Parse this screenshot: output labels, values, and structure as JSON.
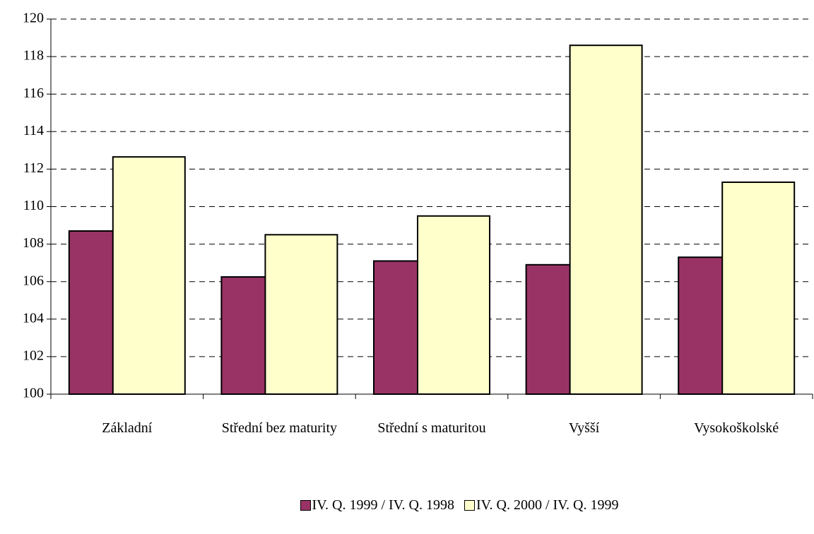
{
  "chart_data": {
    "type": "bar",
    "categories": [
      "Základní",
      "Střední bez maturity",
      "Střední s maturitou",
      "Vyšší",
      "Vysokoškolské"
    ],
    "series": [
      {
        "name": "IV. Q. 1999 / IV. Q. 1998",
        "color": "#993366",
        "values": [
          108.7,
          106.25,
          107.1,
          106.9,
          107.3
        ]
      },
      {
        "name": "IV. Q. 2000 / IV. Q. 1999",
        "color": "#ffffcc",
        "values": [
          112.65,
          108.5,
          109.5,
          118.6,
          111.3
        ]
      }
    ],
    "ylim": [
      100,
      120
    ],
    "yticks": [
      100,
      102,
      104,
      106,
      108,
      110,
      112,
      114,
      116,
      118,
      120
    ],
    "grid": true,
    "legend": "bottom"
  }
}
